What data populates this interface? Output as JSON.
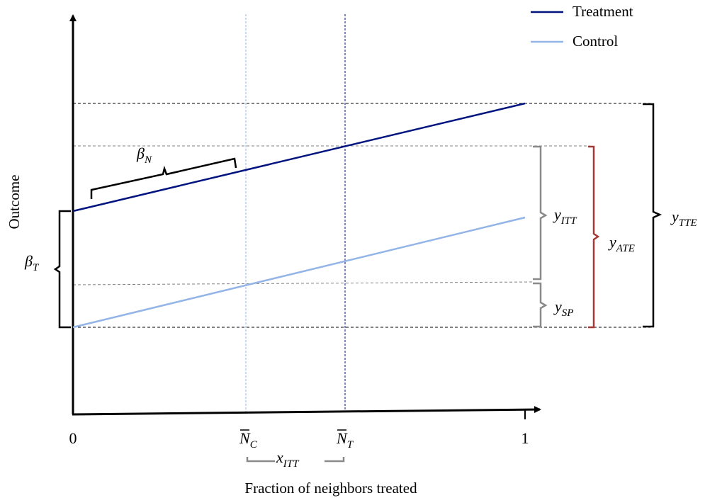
{
  "legend": [
    {
      "label": "Treatment",
      "color": "#00137f"
    },
    {
      "label": "Control",
      "color": "#93b4e6"
    }
  ],
  "axes": {
    "y_title": "Outcome",
    "x_title": "Fraction of neighbors treated",
    "x_tick_0": "0",
    "x_tick_1": "1"
  },
  "labels": {
    "nc_base": "N",
    "nc_sub": "C",
    "nt_base": "N",
    "nt_sub": "T",
    "beta_n_base": "β",
    "beta_n_sub": "N",
    "beta_t_base": "β",
    "beta_t_sub": "T",
    "x_itt_base": "x",
    "x_itt_sub": "ITT",
    "y_itt_base": "y",
    "y_itt_sub": "ITT",
    "y_sp_base": "y",
    "y_sp_sub": "SP",
    "y_ate_base": "y",
    "y_ate_sub": "ATE",
    "y_tte_base": "y",
    "y_tte_sub": "TTE"
  },
  "colors": {
    "treatment": "#00137f",
    "control": "#93b4e6",
    "gray_bracket": "#8a8a8a",
    "red_bracket": "#a33a36",
    "axis": "#000000"
  }
}
